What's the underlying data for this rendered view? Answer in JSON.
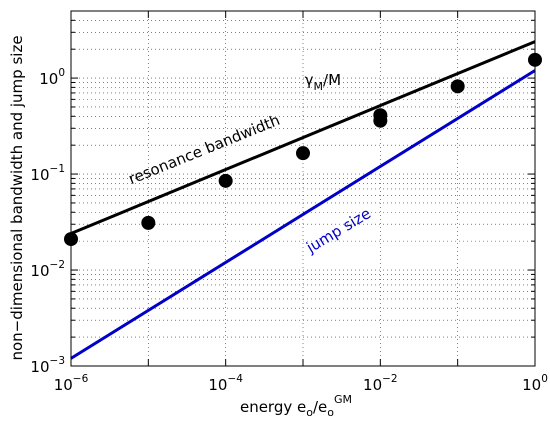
{
  "chart_data": {
    "type": "line",
    "title": "",
    "xlabel_parts": {
      "base": "energy e",
      "sub1": "o",
      "mid": "/e",
      "sub2": "o",
      "sup": "GM"
    },
    "ylabel": "non−dimensional bandwidth and jump size",
    "x_scale": "log",
    "y_scale": "log",
    "xlim": [
      1e-06,
      1
    ],
    "ylim": [
      0.001,
      5
    ],
    "grid": true,
    "x_ticks": [
      {
        "value": 1e-06,
        "base": "10",
        "exp": "−6"
      },
      {
        "value": 0.0001,
        "base": "10",
        "exp": "−4"
      },
      {
        "value": 0.01,
        "base": "10",
        "exp": "−2"
      },
      {
        "value": 1,
        "base": "10",
        "exp": "0"
      }
    ],
    "y_ticks": [
      {
        "value": 0.001,
        "base": "10",
        "exp": "−3"
      },
      {
        "value": 0.01,
        "base": "10",
        "exp": "−2"
      },
      {
        "value": 0.1,
        "base": "10",
        "exp": "−1"
      },
      {
        "value": 1,
        "base": "10",
        "exp": "0"
      }
    ],
    "series": [
      {
        "type": "line",
        "color": "#000000",
        "x": [
          1e-06,
          1
        ],
        "y": [
          0.024,
          2.4
        ]
      },
      {
        "type": "line",
        "color": "#0000c8",
        "x": [
          1e-06,
          1
        ],
        "y": [
          0.0012,
          1.2
        ]
      },
      {
        "type": "scatter",
        "color": "#000000",
        "x": [
          1e-06,
          1e-05,
          0.0001,
          0.001,
          0.01,
          0.01,
          0.1,
          1
        ],
        "y": [
          0.021,
          0.031,
          0.085,
          0.165,
          0.36,
          0.41,
          0.82,
          1.55
        ]
      }
    ],
    "annotations": [
      {
        "text": "resonance bandwidth",
        "color": "#000000",
        "rotate": -22,
        "x": 6e-06,
        "y": 0.078
      },
      {
        "text": "γ",
        "color": "#000000",
        "sub": "M",
        "tail": "/M",
        "x": 0.00105,
        "y": 0.85
      },
      {
        "text": "jump size",
        "color": "#0000c8",
        "rotate": -31,
        "x": 0.00125,
        "y": 0.015
      }
    ]
  }
}
